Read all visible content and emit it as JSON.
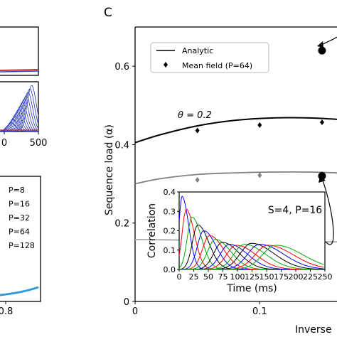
{
  "panel_letter": "C",
  "chart_data": [
    {
      "type": "line",
      "title": "",
      "xlabel": "Inverse",
      "ylabel": "Sequence load (α)",
      "xlim": [
        0,
        0.17
      ],
      "ylim": [
        0,
        0.7
      ],
      "x_ticks": [
        "0",
        "0.1"
      ],
      "y_ticks": [
        "0",
        "0.2",
        "0.4",
        "0.6"
      ],
      "legend": [
        "Analytic",
        "Mean field (P=64)"
      ],
      "legend_position": "top-left",
      "curve_annotation": "θ = 0.2",
      "series": [
        {
          "name": "Analytic",
          "color": "#000000",
          "x": [
            0,
            0.02,
            0.05,
            0.08,
            0.11,
            0.14,
            0.17
          ],
          "y": [
            0.405,
            0.425,
            0.448,
            0.462,
            0.468,
            0.468,
            0.463
          ]
        },
        {
          "name": "",
          "color": "#808080",
          "x": [
            0,
            0.02,
            0.05,
            0.08,
            0.11,
            0.14,
            0.17
          ],
          "y": [
            0.3,
            0.313,
            0.324,
            0.328,
            0.33,
            0.33,
            0.327
          ]
        },
        {
          "name": "",
          "color": "#aaaaaa",
          "x": [
            0,
            0.03,
            0.06,
            0.09,
            0.12,
            0.15,
            0.17
          ],
          "y": [
            0.158,
            0.157,
            0.155,
            0.153,
            0.152,
            0.152,
            0.152
          ]
        },
        {
          "name": "Mean field (P=64)",
          "color": "#000000",
          "marker": "diamond",
          "x": [
            0.05,
            0.1,
            0.15
          ],
          "y": [
            0.436,
            0.45,
            0.457
          ]
        },
        {
          "name": "",
          "color": "#808080",
          "marker": "diamond",
          "x": [
            0.05,
            0.1,
            0.15
          ],
          "y": [
            0.31,
            0.322,
            0.325
          ]
        }
      ],
      "highlight_points": {
        "x": [
          0.15,
          0.15
        ],
        "y": [
          0.64,
          0.32
        ]
      }
    },
    {
      "type": "line",
      "title": "S=4, P=16",
      "xlabel": "Time (ms)",
      "ylabel": "Correlation",
      "xlim": [
        0,
        250
      ],
      "ylim": [
        0,
        0.4
      ],
      "x_ticks": [
        "0",
        "25",
        "50",
        "75",
        "100",
        "125",
        "150",
        "175",
        "200",
        "225",
        "250"
      ],
      "y_ticks": [
        "0.0",
        "0.1",
        "0.2",
        "0.3",
        "0.4"
      ],
      "series_colors": [
        "#0000ff",
        "#ff0000",
        "#00aa00",
        "#000000"
      ],
      "peaks": {
        "x": [
          5,
          12,
          22,
          32,
          42,
          52,
          62,
          74,
          86,
          98,
          112,
          124,
          138,
          152,
          166
        ],
        "y": [
          0.375,
          0.31,
          0.27,
          0.23,
          0.2,
          0.175,
          0.155,
          0.14,
          0.13,
          0.125,
          0.13,
          0.135,
          0.13,
          0.125,
          0.125
        ]
      }
    },
    {
      "type": "line",
      "title": "",
      "x_ticks": [
        "0.8"
      ],
      "legend": [
        "P=8",
        "P=16",
        "P=32",
        "P=64",
        "P=128"
      ],
      "series": [
        {
          "name": "",
          "color": "#3399dd",
          "x": [
            0.6,
            0.7,
            0.85
          ],
          "y": [
            0.02,
            0.03,
            0.06
          ]
        }
      ]
    },
    {
      "type": "line",
      "x_ticks": [
        "0",
        "500"
      ]
    }
  ]
}
